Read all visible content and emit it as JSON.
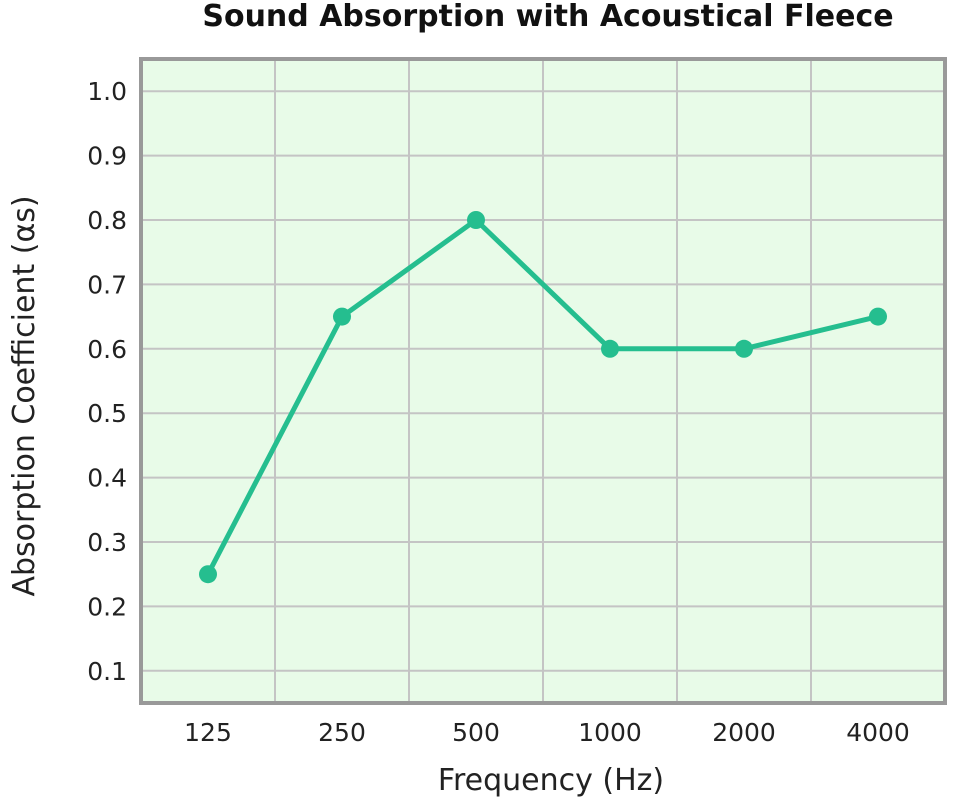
{
  "chart_data": {
    "type": "line",
    "title": "Sound Absorption with Acoustical Fleece",
    "xlabel": "Frequency (Hz)",
    "ylabel": "Absorption Coefficient (αs)",
    "categories": [
      "125",
      "250",
      "500",
      "1000",
      "2000",
      "4000"
    ],
    "series": [
      {
        "values": [
          0.25,
          0.65,
          0.8,
          0.6,
          0.6,
          0.65
        ]
      }
    ],
    "yticks": [
      "0.1",
      "0.2",
      "0.3",
      "0.4",
      "0.5",
      "0.6",
      "0.7",
      "0.8",
      "0.9",
      "1.0"
    ],
    "ylim": [
      0.05,
      1.05
    ],
    "grid": true,
    "colors": {
      "line": "#25BE8F",
      "plot_background": "#E8FBE8",
      "grid": "#C4C4C4",
      "frame": "#999999"
    }
  }
}
